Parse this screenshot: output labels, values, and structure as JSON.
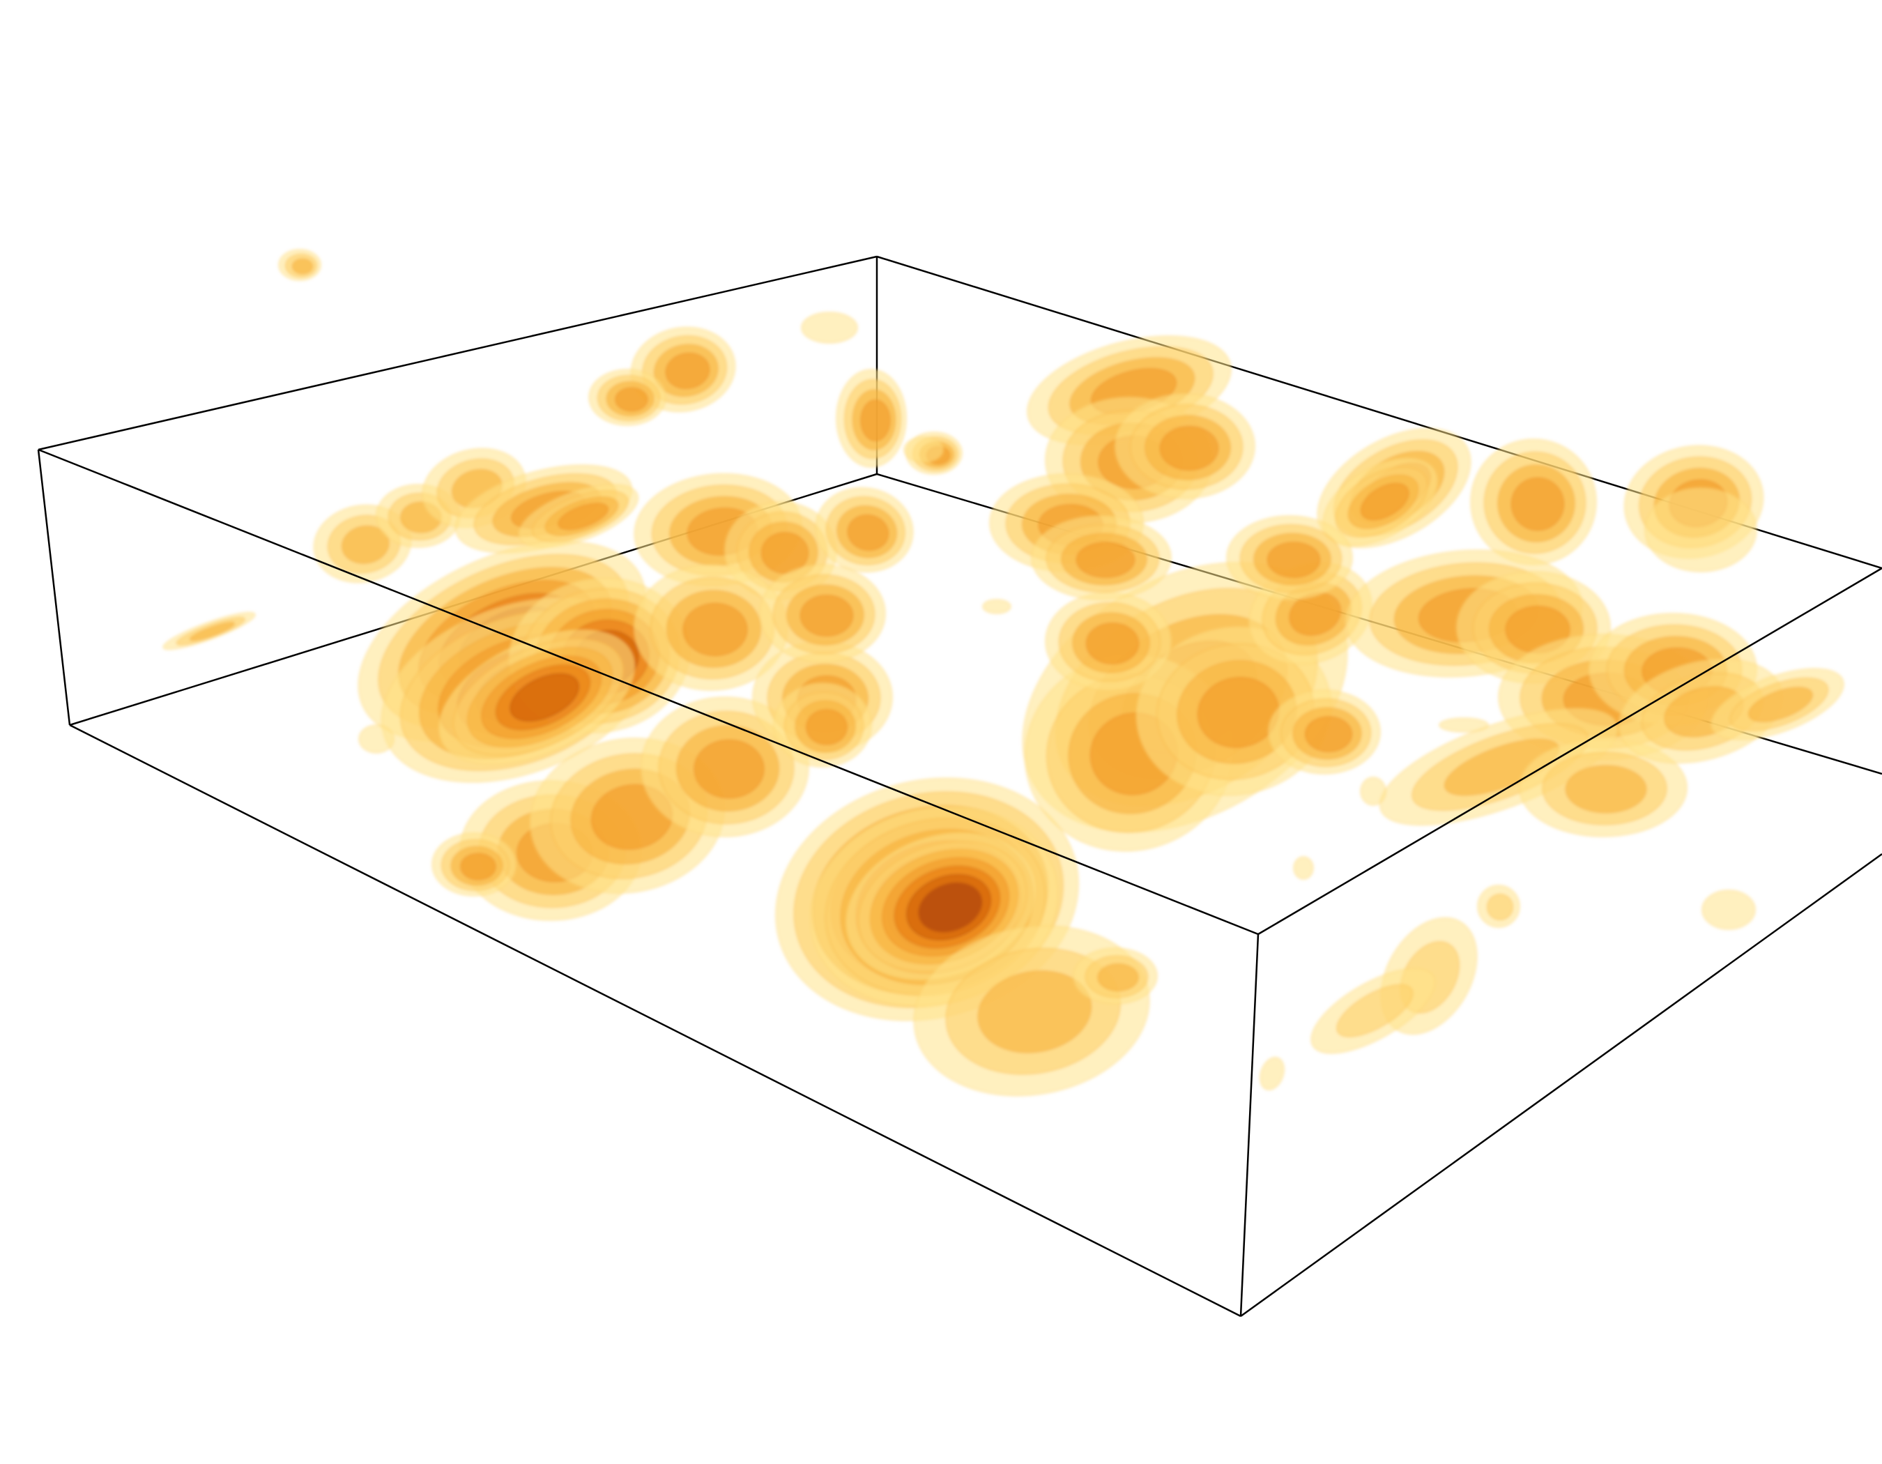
{
  "figure": {
    "kind": "3d-isosurface-volume-render",
    "background_color": "#ffffff",
    "box_edge_color": "#000000",
    "isosurface_levels": [
      {
        "level": 1,
        "color": "#ffe48a"
      },
      {
        "level": 2,
        "color": "#fdd06a"
      },
      {
        "level": 3,
        "color": "#f9b23c"
      },
      {
        "level": 4,
        "color": "#f29a25"
      },
      {
        "level": 5,
        "color": "#e77a12"
      },
      {
        "level": 6,
        "color": "#cf5c07"
      },
      {
        "level": 7,
        "color": "#a83e03"
      }
    ],
    "blobs": [
      {
        "id": "far-left-cluster",
        "peak": 3
      },
      {
        "id": "left-upper-cluster",
        "peak": 4
      },
      {
        "id": "left-main-elongated",
        "peak": 6
      },
      {
        "id": "center-left-cluster",
        "peak": 4
      },
      {
        "id": "center-main-cylinder",
        "peak": 7
      },
      {
        "id": "lower-center-lobe",
        "peak": 3
      },
      {
        "id": "center-right-cluster",
        "peak": 4
      },
      {
        "id": "top-center-cluster",
        "peak": 4
      },
      {
        "id": "right-top-cluster",
        "peak": 4
      },
      {
        "id": "right-middle-cluster",
        "peak": 4
      },
      {
        "id": "right-lower-cluster",
        "peak": 3
      },
      {
        "id": "right-edge-piece",
        "peak": 2
      },
      {
        "id": "small-isolated-pieces",
        "peak": 1
      }
    ]
  }
}
